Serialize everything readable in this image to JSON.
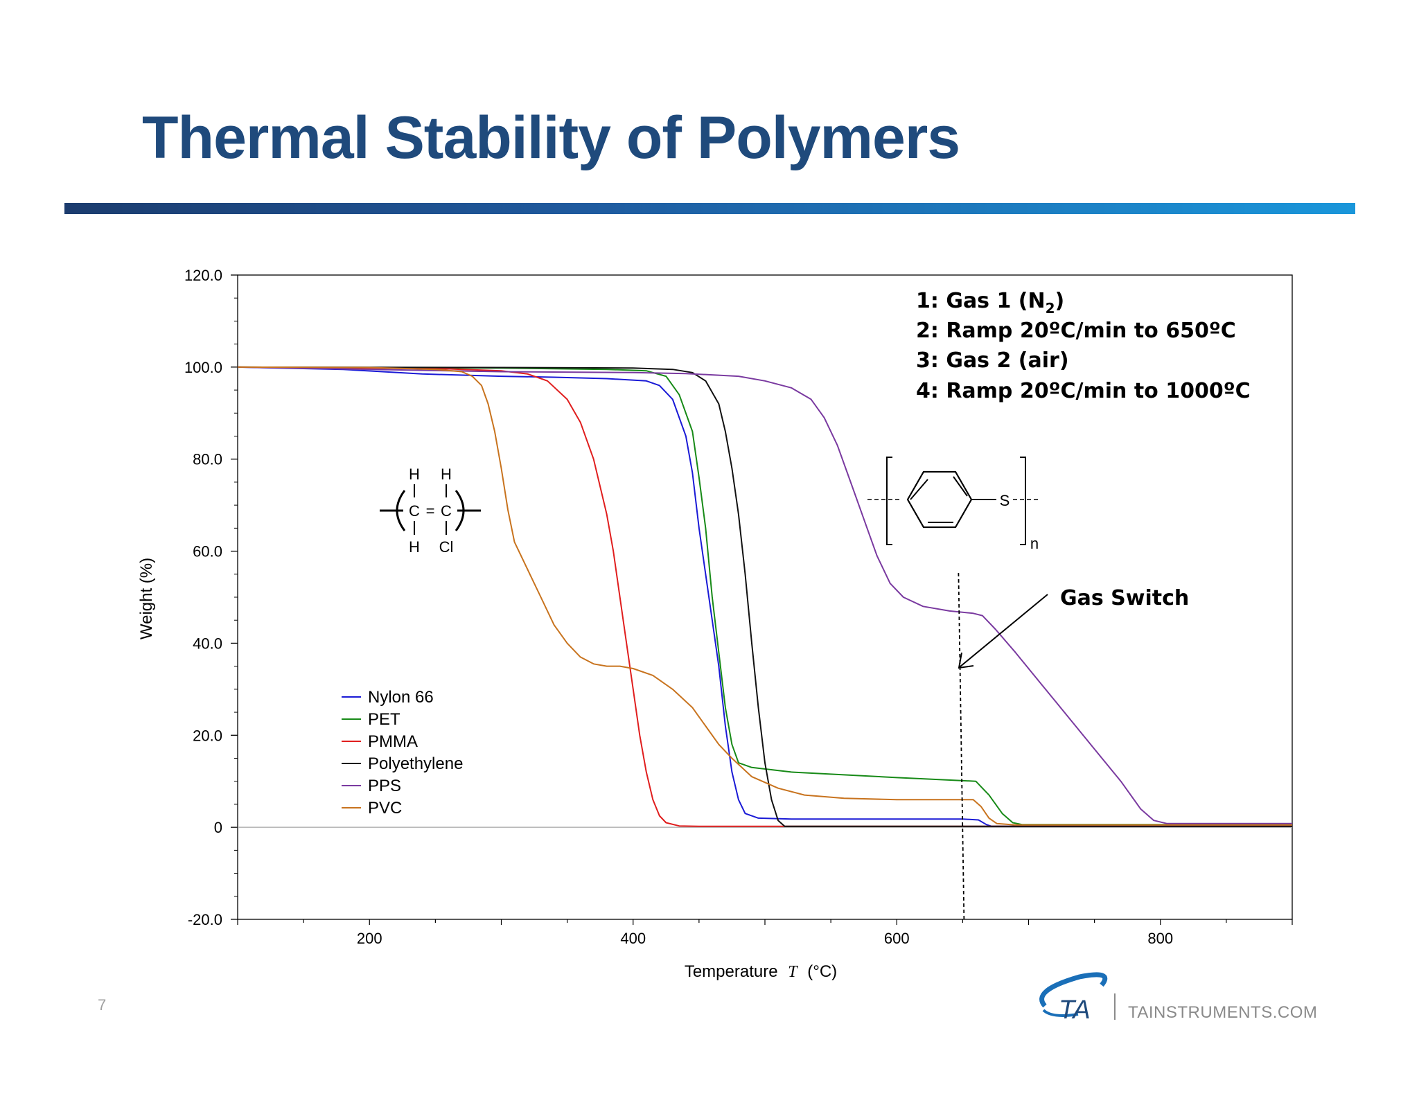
{
  "slide": {
    "title": "Thermal Stability of Polymers",
    "page_number": "7",
    "logo_text": "TA",
    "website": "TAINSTRUMENTS.COM"
  },
  "annotations": {
    "steps": [
      "1:  Gas 1 (N",
      "2:  Ramp 20ºC/min to 650ºC",
      "3:  Gas 2 (air)",
      "4:   Ramp 20ºC/min to 1000ºC"
    ],
    "step1_sub": "2",
    "step1_close": ")",
    "gas_switch": "Gas Switch",
    "gas_switch_temp": 650
  },
  "structures": {
    "pvc": {
      "h1": "H",
      "h2": "H",
      "c1": "C",
      "eq": "=",
      "c2": "C",
      "h3": "H",
      "cl": "Cl"
    },
    "pps": {
      "s": "S",
      "n": "n"
    }
  },
  "chart_data": {
    "type": "line",
    "title": "",
    "xlabel": "Temperature",
    "xlabel_symbol": "T",
    "xlabel_unit": "(°C)",
    "ylabel": "Weight (%)",
    "xlim": [
      100,
      900
    ],
    "ylim": [
      -20,
      120
    ],
    "x_ticks": [
      200,
      400,
      600,
      800
    ],
    "y_ticks": [
      -20,
      0,
      20,
      40,
      60,
      80,
      100,
      120
    ],
    "y_tick_labels": [
      "-20.0",
      "0",
      "20.0",
      "40.0",
      "60.0",
      "80.0",
      "100.0",
      "120.0"
    ],
    "grid": false,
    "legend_position": "left-middle",
    "series": [
      {
        "name": "Nylon  66",
        "color": "#1a1ad6",
        "points": [
          [
            100,
            100
          ],
          [
            180,
            99.5
          ],
          [
            240,
            98.5
          ],
          [
            300,
            98
          ],
          [
            340,
            97.8
          ],
          [
            380,
            97.5
          ],
          [
            410,
            97
          ],
          [
            420,
            96
          ],
          [
            430,
            93
          ],
          [
            440,
            85
          ],
          [
            445,
            77
          ],
          [
            450,
            65
          ],
          [
            455,
            55
          ],
          [
            460,
            45
          ],
          [
            465,
            35
          ],
          [
            470,
            22
          ],
          [
            475,
            12
          ],
          [
            480,
            6
          ],
          [
            485,
            3
          ],
          [
            495,
            2
          ],
          [
            520,
            1.8
          ],
          [
            600,
            1.8
          ],
          [
            650,
            1.8
          ],
          [
            662,
            1.6
          ],
          [
            668,
            0.6
          ],
          [
            672,
            0.2
          ],
          [
            900,
            0.2
          ]
        ]
      },
      {
        "name": "PET",
        "color": "#178a17",
        "points": [
          [
            100,
            100
          ],
          [
            300,
            99.8
          ],
          [
            380,
            99.5
          ],
          [
            410,
            99.2
          ],
          [
            425,
            98
          ],
          [
            435,
            94
          ],
          [
            445,
            86
          ],
          [
            450,
            76
          ],
          [
            455,
            65
          ],
          [
            460,
            50
          ],
          [
            465,
            38
          ],
          [
            470,
            26
          ],
          [
            475,
            18
          ],
          [
            480,
            14
          ],
          [
            490,
            13
          ],
          [
            520,
            12
          ],
          [
            600,
            10.8
          ],
          [
            660,
            10
          ],
          [
            670,
            7
          ],
          [
            680,
            3
          ],
          [
            688,
            1
          ],
          [
            695,
            0.6
          ],
          [
            900,
            0.6
          ]
        ]
      },
      {
        "name": "PMMA",
        "color": "#e01e1e",
        "points": [
          [
            100,
            100
          ],
          [
            200,
            99.8
          ],
          [
            260,
            99.6
          ],
          [
            300,
            99.2
          ],
          [
            320,
            98.5
          ],
          [
            335,
            97
          ],
          [
            350,
            93
          ],
          [
            360,
            88
          ],
          [
            370,
            80
          ],
          [
            380,
            68
          ],
          [
            385,
            60
          ],
          [
            390,
            50
          ],
          [
            395,
            40
          ],
          [
            400,
            30
          ],
          [
            405,
            20
          ],
          [
            410,
            12
          ],
          [
            415,
            6
          ],
          [
            420,
            2.5
          ],
          [
            425,
            1
          ],
          [
            435,
            0.3
          ],
          [
            450,
            0.2
          ],
          [
            900,
            0.2
          ]
        ]
      },
      {
        "name": "Polyethylene",
        "color": "#111111",
        "points": [
          [
            100,
            100
          ],
          [
            300,
            99.9
          ],
          [
            400,
            99.8
          ],
          [
            430,
            99.5
          ],
          [
            445,
            98.8
          ],
          [
            455,
            97
          ],
          [
            465,
            92
          ],
          [
            470,
            86
          ],
          [
            475,
            78
          ],
          [
            480,
            68
          ],
          [
            485,
            55
          ],
          [
            490,
            40
          ],
          [
            495,
            26
          ],
          [
            500,
            14
          ],
          [
            505,
            6
          ],
          [
            510,
            1.5
          ],
          [
            515,
            0.2
          ],
          [
            900,
            0.2
          ]
        ]
      },
      {
        "name": "PPS",
        "color": "#7a3aa0",
        "points": [
          [
            100,
            100
          ],
          [
            300,
            99
          ],
          [
            400,
            98.8
          ],
          [
            440,
            98.6
          ],
          [
            480,
            98
          ],
          [
            500,
            97
          ],
          [
            520,
            95.5
          ],
          [
            535,
            93
          ],
          [
            545,
            89
          ],
          [
            555,
            83
          ],
          [
            565,
            75
          ],
          [
            575,
            67
          ],
          [
            585,
            59
          ],
          [
            595,
            53
          ],
          [
            605,
            50
          ],
          [
            620,
            48
          ],
          [
            640,
            47
          ],
          [
            658,
            46.5
          ],
          [
            665,
            46
          ],
          [
            675,
            43
          ],
          [
            690,
            38
          ],
          [
            710,
            31
          ],
          [
            730,
            24
          ],
          [
            750,
            17
          ],
          [
            770,
            10
          ],
          [
            785,
            4
          ],
          [
            795,
            1.5
          ],
          [
            805,
            0.8
          ],
          [
            900,
            0.8
          ]
        ]
      },
      {
        "name": "PVC",
        "color": "#c8731e",
        "points": [
          [
            100,
            100
          ],
          [
            200,
            99.9
          ],
          [
            250,
            99.5
          ],
          [
            270,
            99
          ],
          [
            278,
            98
          ],
          [
            285,
            96
          ],
          [
            290,
            92
          ],
          [
            295,
            86
          ],
          [
            300,
            78
          ],
          [
            305,
            69
          ],
          [
            310,
            62
          ],
          [
            320,
            56
          ],
          [
            330,
            50
          ],
          [
            340,
            44
          ],
          [
            350,
            40
          ],
          [
            360,
            37
          ],
          [
            370,
            35.5
          ],
          [
            380,
            35
          ],
          [
            390,
            35
          ],
          [
            400,
            34.5
          ],
          [
            415,
            33
          ],
          [
            430,
            30
          ],
          [
            445,
            26
          ],
          [
            455,
            22
          ],
          [
            465,
            18
          ],
          [
            475,
            15
          ],
          [
            490,
            11
          ],
          [
            510,
            8.5
          ],
          [
            530,
            7
          ],
          [
            560,
            6.3
          ],
          [
            600,
            6
          ],
          [
            658,
            6
          ],
          [
            664,
            4.5
          ],
          [
            670,
            2
          ],
          [
            676,
            0.8
          ],
          [
            690,
            0.5
          ],
          [
            900,
            0.5
          ]
        ]
      }
    ]
  }
}
